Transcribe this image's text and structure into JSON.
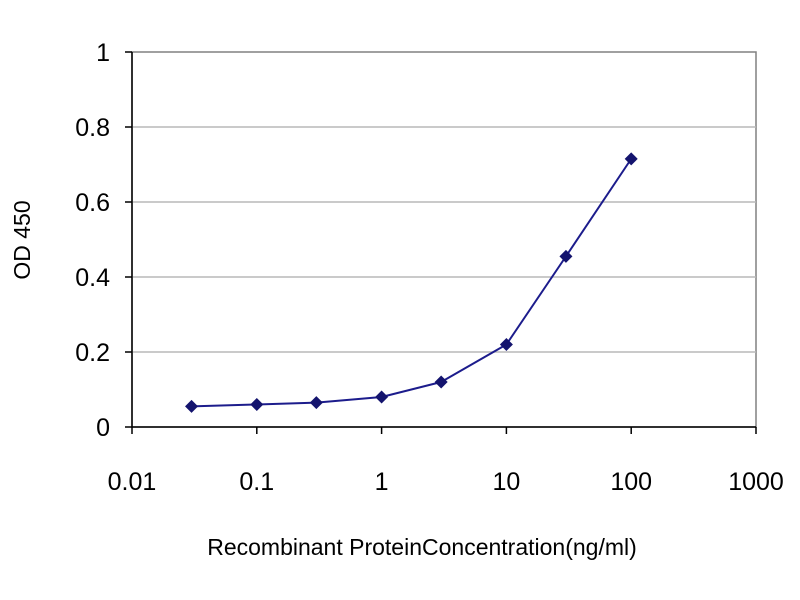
{
  "chart_data": {
    "type": "line",
    "title": "",
    "xlabel": "Recombinant ProteinConcentration(ng/ml)",
    "ylabel": "OD 450",
    "x_scale": "log",
    "xlim": [
      0.01,
      1000
    ],
    "ylim": [
      0,
      1
    ],
    "x_ticks": [
      0.01,
      0.1,
      1,
      10,
      100,
      1000
    ],
    "x_tick_labels": [
      "0.01",
      "0.1",
      "1",
      "10",
      "100",
      "1000"
    ],
    "y_ticks": [
      0,
      0.2,
      0.4,
      0.6,
      0.8,
      1
    ],
    "y_tick_labels": [
      "0",
      "0.2",
      "0.4",
      "0.6",
      "0.8",
      "1"
    ],
    "grid": "horizontal",
    "legend": "none",
    "series": [
      {
        "x": [
          0.03,
          0.1,
          0.3,
          1,
          3,
          10,
          30,
          100
        ],
        "y": [
          0.055,
          0.06,
          0.065,
          0.08,
          0.12,
          0.22,
          0.455,
          0.715
        ],
        "color": "#1c1c8c",
        "marker": "diamond"
      }
    ],
    "colors": {
      "line": "#1c1c8c",
      "marker": "#14146e",
      "grid": "#b8b8b8",
      "frame": "#808080"
    }
  }
}
